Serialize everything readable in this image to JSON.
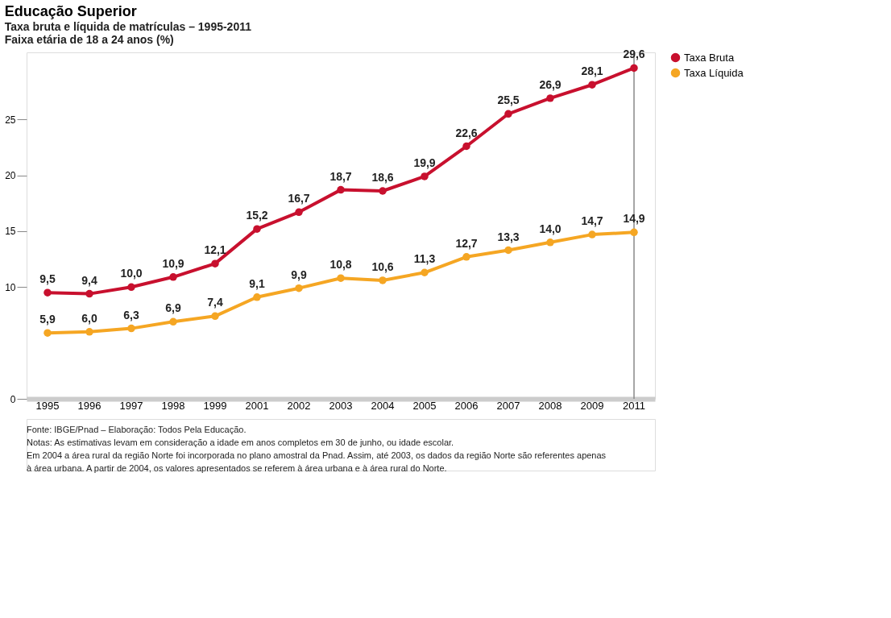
{
  "chart_data": {
    "type": "line",
    "title": "Educação Superior",
    "subtitle": "Taxa bruta e líquida de matrículas – 1995-2011\nFaixa etária de 18 a 24 anos (%)",
    "categories": [
      "1995",
      "1996",
      "1997",
      "1998",
      "1999",
      "2001",
      "2002",
      "2003",
      "2004",
      "2005",
      "2006",
      "2007",
      "2008",
      "2009",
      "2011"
    ],
    "series": [
      {
        "name": "Taxa Bruta",
        "color": "#c8102e",
        "values": [
          9.5,
          9.4,
          10.0,
          10.9,
          12.1,
          15.2,
          16.7,
          18.7,
          18.6,
          19.9,
          22.6,
          25.5,
          26.9,
          28.1,
          29.6
        ],
        "value_labels": [
          "9,5",
          "9,4",
          "10,0",
          "10,9",
          "12,1",
          "15,2",
          "16,7",
          "18,7",
          "18,6",
          "19,9",
          "22,6",
          "25,5",
          "26,9",
          "28,1",
          "29,6"
        ]
      },
      {
        "name": "Taxa Líquida",
        "color": "#f5a623",
        "values": [
          5.9,
          6.0,
          6.3,
          6.9,
          7.4,
          9.1,
          9.9,
          10.8,
          10.6,
          11.3,
          12.7,
          13.3,
          14.0,
          14.7,
          14.9
        ],
        "value_labels": [
          "5,9",
          "6,0",
          "6,3",
          "6,9",
          "7,4",
          "9,1",
          "9,9",
          "10,8",
          "10,6",
          "11,3",
          "12,7",
          "13,3",
          "14,0",
          "14,7",
          "14,9"
        ]
      }
    ],
    "ylim": [
      0,
      31
    ],
    "yticks": [
      0,
      10,
      15,
      20,
      25
    ],
    "ref_lines": [
      {
        "axis": "x",
        "value": "2011",
        "color": "#888888"
      }
    ],
    "marker": "circle",
    "line_style": "solid",
    "grid": false,
    "legend": "right",
    "annotations": [
      "Fonte: IBGE/Pnad – Elaboração: Todos Pela Educação.",
      "Notas: As estimativas levam em consideração a idade em anos completos em 30 de junho, ou idade escolar.",
      "Em 2004 a área rural da região Norte foi incorporada no plano amostral da Pnad. Assim, até 2003, os dados da região Norte são referentes apenas",
      "à área urbana. A partir de 2004, os valores apresentados se referem à área urbana e à área rural do Norte."
    ]
  }
}
